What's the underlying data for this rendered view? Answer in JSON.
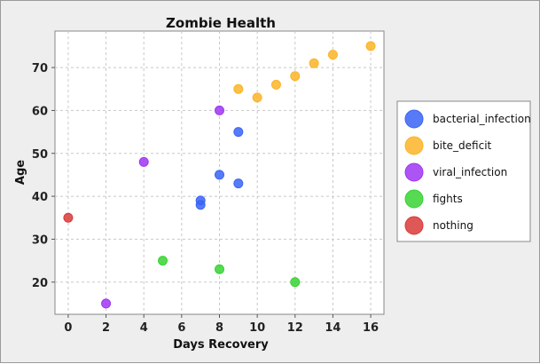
{
  "chart_data": {
    "type": "scatter",
    "title": "Zombie Health",
    "xlabel": "Days Recovery",
    "ylabel": "Age",
    "xlim": [
      -0.7,
      16.7
    ],
    "ylim": [
      12.5,
      78.5
    ],
    "xticks": [
      0,
      2,
      4,
      6,
      8,
      10,
      12,
      14,
      16
    ],
    "yticks": [
      20,
      30,
      40,
      50,
      60,
      70
    ],
    "grid": true,
    "legend_position": "right",
    "series": [
      {
        "name": "bacterial_infection",
        "color": "#3a64f5",
        "points": [
          {
            "x": 7,
            "y": 38
          },
          {
            "x": 7,
            "y": 39
          },
          {
            "x": 8,
            "y": 45
          },
          {
            "x": 9,
            "y": 43
          },
          {
            "x": 9,
            "y": 55
          }
        ]
      },
      {
        "name": "bite_deficit",
        "color": "#fbb427",
        "points": [
          {
            "x": 9,
            "y": 65
          },
          {
            "x": 10,
            "y": 63
          },
          {
            "x": 11,
            "y": 66
          },
          {
            "x": 12,
            "y": 68
          },
          {
            "x": 13,
            "y": 71
          },
          {
            "x": 14,
            "y": 73
          },
          {
            "x": 16,
            "y": 75
          }
        ]
      },
      {
        "name": "viral_infection",
        "color": "#9f36f2",
        "points": [
          {
            "x": 2,
            "y": 15
          },
          {
            "x": 4,
            "y": 48
          },
          {
            "x": 8,
            "y": 60
          }
        ]
      },
      {
        "name": "fights",
        "color": "#37d333",
        "points": [
          {
            "x": 5,
            "y": 25
          },
          {
            "x": 8,
            "y": 23
          },
          {
            "x": 12,
            "y": 20
          }
        ]
      },
      {
        "name": "nothing",
        "color": "#d93a3a",
        "points": [
          {
            "x": 0,
            "y": 35
          }
        ]
      }
    ]
  }
}
